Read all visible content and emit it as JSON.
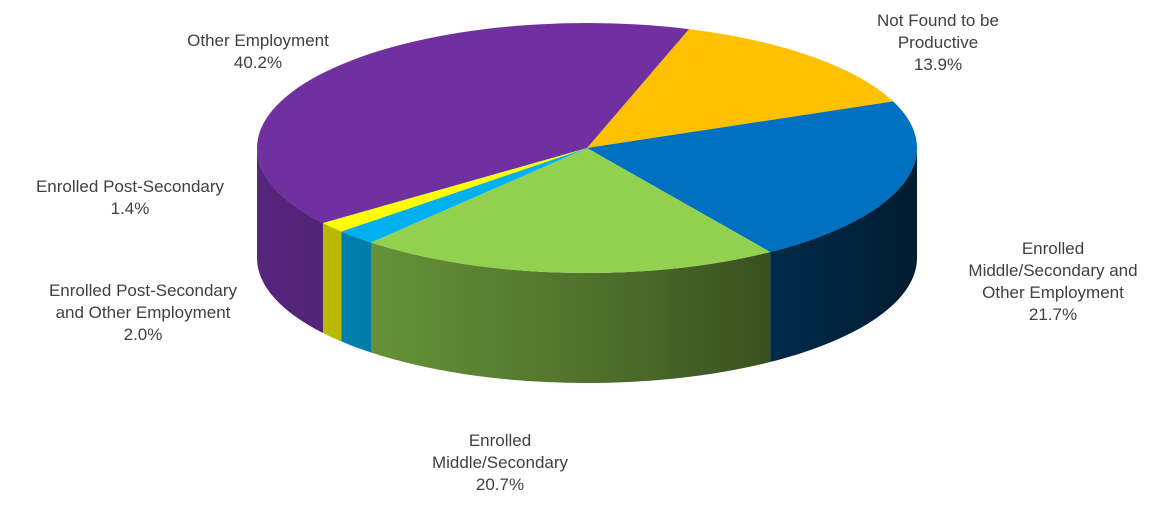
{
  "chart_data": {
    "type": "pie",
    "title": "",
    "slices": [
      {
        "name": "Not Found to be Productive",
        "label_lines": [
          "Not Found to be",
          "Productive"
        ],
        "value": 13.9,
        "display": "13.9%",
        "color": "#FFC000"
      },
      {
        "name": "Enrolled Middle/Secondary and Other Employment",
        "label_lines": [
          "Enrolled",
          "Middle/Secondary and",
          "Other Employment"
        ],
        "value": 21.7,
        "display": "21.7%",
        "color": "#0070C0"
      },
      {
        "name": "Enrolled Middle/Secondary",
        "label_lines": [
          "Enrolled",
          "Middle/Secondary"
        ],
        "value": 20.7,
        "display": "20.7%",
        "color": "#92D050"
      },
      {
        "name": "Enrolled Post-Secondary and Other Employment",
        "label_lines": [
          "Enrolled Post-Secondary",
          "and Other Employment"
        ],
        "value": 2.0,
        "display": "2.0%",
        "color": "#00B0F0"
      },
      {
        "name": "Enrolled Post-Secondary",
        "label_lines": [
          "Enrolled Post-Secondary"
        ],
        "value": 1.4,
        "display": "1.4%",
        "color": "#FFFF00"
      },
      {
        "name": "Other Employment",
        "label_lines": [
          "Other Employment"
        ],
        "value": 40.2,
        "display": "40.2%",
        "color": "#7030A0"
      }
    ],
    "style": "3d-pie",
    "legend": "none"
  }
}
